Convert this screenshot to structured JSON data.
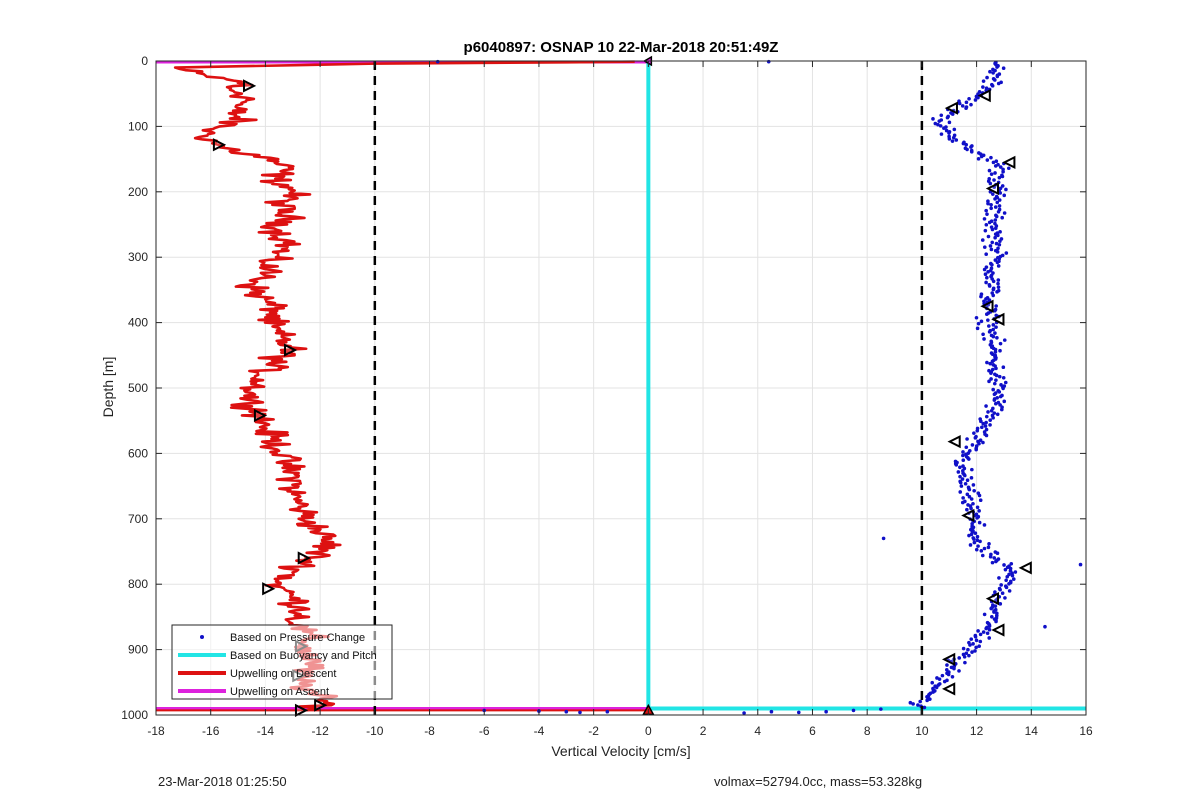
{
  "chart_data": {
    "type": "line",
    "title": "p6040897: OSNAP 10 22-Mar-2018 20:51:49Z",
    "xlabel": "Vertical Velocity [cm/s]",
    "ylabel": "Depth [m]",
    "xlim": [
      -18,
      16
    ],
    "ylim": [
      1000,
      0
    ],
    "y_reversed": true,
    "grid": true,
    "xticks": [
      -18,
      -16,
      -14,
      -12,
      -10,
      -8,
      -6,
      -4,
      -2,
      0,
      2,
      4,
      6,
      8,
      10,
      12,
      14,
      16
    ],
    "yticks": [
      0,
      100,
      200,
      300,
      400,
      500,
      600,
      700,
      800,
      900,
      1000
    ],
    "legend_position": "bottom-left",
    "legend": [
      {
        "label": "Based on Pressure Change",
        "color": "#1010c8",
        "style": "marker"
      },
      {
        "label": "Based on Buoyancy and Pitch",
        "color": "#22e5e5",
        "style": "line"
      },
      {
        "label": "Upwelling on Descent",
        "color": "#dd1111",
        "style": "line"
      },
      {
        "label": "Upwelling on Ascent",
        "color": "#dd22dd",
        "style": "line"
      }
    ],
    "vlines": [
      {
        "x": -10,
        "style": "dashed",
        "color": "#000000"
      },
      {
        "x": 10,
        "style": "dashed",
        "color": "#000000"
      }
    ],
    "series": [
      {
        "name": "Based on Pressure Change",
        "kind": "scatter",
        "color": "#1010c8",
        "ascent_profile": [
          {
            "y": 0,
            "x": 12.8
          },
          {
            "y": 40,
            "x": 12.6
          },
          {
            "y": 90,
            "x": 10.6
          },
          {
            "y": 130,
            "x": 11.5
          },
          {
            "y": 160,
            "x": 12.9
          },
          {
            "y": 220,
            "x": 12.6
          },
          {
            "y": 300,
            "x": 12.7
          },
          {
            "y": 380,
            "x": 12.4
          },
          {
            "y": 440,
            "x": 12.6
          },
          {
            "y": 520,
            "x": 12.8
          },
          {
            "y": 580,
            "x": 11.9
          },
          {
            "y": 620,
            "x": 11.4
          },
          {
            "y": 680,
            "x": 11.8
          },
          {
            "y": 740,
            "x": 12.0
          },
          {
            "y": 780,
            "x": 13.2
          },
          {
            "y": 830,
            "x": 12.8
          },
          {
            "y": 880,
            "x": 12.2
          },
          {
            "y": 920,
            "x": 11.2
          },
          {
            "y": 960,
            "x": 10.6
          },
          {
            "y": 985,
            "x": 9.8
          }
        ],
        "bottom_points": [
          {
            "x": -6,
            "y": 993
          },
          {
            "x": -4,
            "y": 994
          },
          {
            "x": -3,
            "y": 995
          },
          {
            "x": -2.5,
            "y": 996
          },
          {
            "x": -1.5,
            "y": 995
          },
          {
            "x": 3.5,
            "y": 997
          },
          {
            "x": 4.5,
            "y": 995
          },
          {
            "x": 5.5,
            "y": 996
          },
          {
            "x": 6.5,
            "y": 995
          },
          {
            "x": 7.5,
            "y": 993
          },
          {
            "x": 8.5,
            "y": 991
          }
        ],
        "outliers": [
          {
            "x": 4.4,
            "y": 1
          },
          {
            "x": -7.7,
            "y": 1
          },
          {
            "x": 8.6,
            "y": 730
          },
          {
            "x": 15.8,
            "y": 770
          },
          {
            "x": 14.5,
            "y": 865
          }
        ]
      },
      {
        "name": "Based on Buoyancy and Pitch",
        "kind": "line",
        "color": "#22e5e5",
        "points": [
          [
            0,
            0
          ],
          [
            0,
            990
          ],
          [
            16,
            990
          ]
        ]
      },
      {
        "name": "Upwelling on Descent",
        "kind": "line",
        "color": "#dd1111",
        "points": [
          [
            -0.5,
            1
          ],
          [
            -3,
            2
          ],
          [
            -10,
            4
          ],
          [
            -17.3,
            10
          ],
          [
            -16.5,
            20
          ],
          [
            -15.2,
            30
          ],
          [
            -14.6,
            35
          ],
          [
            -15.5,
            40
          ],
          [
            -14.8,
            50
          ],
          [
            -14.6,
            60
          ],
          [
            -15.2,
            70
          ],
          [
            -15.0,
            90
          ],
          [
            -15.6,
            100
          ],
          [
            -16.2,
            110
          ],
          [
            -16.0,
            120
          ],
          [
            -15.7,
            130
          ],
          [
            -14.9,
            140
          ],
          [
            -13.8,
            150
          ],
          [
            -13.3,
            165
          ],
          [
            -13.7,
            180
          ],
          [
            -12.9,
            200
          ],
          [
            -13.5,
            220
          ],
          [
            -13.2,
            240
          ],
          [
            -13.6,
            260
          ],
          [
            -13.1,
            280
          ],
          [
            -13.8,
            300
          ],
          [
            -14.0,
            330
          ],
          [
            -14.5,
            345
          ],
          [
            -14.2,
            360
          ],
          [
            -13.6,
            380
          ],
          [
            -13.9,
            400
          ],
          [
            -13.5,
            420
          ],
          [
            -13.1,
            440
          ],
          [
            -13.7,
            460
          ],
          [
            -14.1,
            480
          ],
          [
            -14.4,
            500
          ],
          [
            -14.6,
            520
          ],
          [
            -14.2,
            540
          ],
          [
            -14.0,
            560
          ],
          [
            -13.7,
            580
          ],
          [
            -13.4,
            600
          ],
          [
            -13.2,
            620
          ],
          [
            -12.9,
            640
          ],
          [
            -13.0,
            660
          ],
          [
            -12.7,
            680
          ],
          [
            -12.5,
            700
          ],
          [
            -12.0,
            720
          ],
          [
            -11.7,
            740
          ],
          [
            -12.3,
            760
          ],
          [
            -12.9,
            780
          ],
          [
            -13.6,
            800
          ],
          [
            -13.0,
            820
          ],
          [
            -12.6,
            840
          ],
          [
            -12.9,
            860
          ],
          [
            -12.4,
            880
          ],
          [
            -12.6,
            900
          ],
          [
            -12.2,
            920
          ],
          [
            -12.8,
            940
          ],
          [
            -12.5,
            960
          ],
          [
            -12.0,
            975
          ],
          [
            -11.8,
            985
          ],
          [
            -12.5,
            993
          ]
        ],
        "jitter": 0.9
      },
      {
        "name": "Upwelling on Ascent",
        "kind": "line",
        "color": "#dd22dd",
        "points": [
          [
            -18,
            0
          ],
          [
            0,
            0
          ],
          [
            -18,
            990
          ],
          [
            0,
            990
          ]
        ]
      }
    ],
    "markers": {
      "descent_triangles_left": [
        {
          "x": -14.6,
          "y": 38
        },
        {
          "x": -15.7,
          "y": 128
        },
        {
          "x": -13.1,
          "y": 442
        },
        {
          "x": -14.2,
          "y": 542
        },
        {
          "x": -12.6,
          "y": 760
        },
        {
          "x": -13.9,
          "y": 807
        },
        {
          "x": -12.7,
          "y": 895
        },
        {
          "x": -12.8,
          "y": 940
        },
        {
          "x": -12.0,
          "y": 985
        },
        {
          "x": -12.7,
          "y": 993
        }
      ],
      "ascent_triangles_right": [
        {
          "x": 12.3,
          "y": 53
        },
        {
          "x": 11.1,
          "y": 72
        },
        {
          "x": 13.2,
          "y": 155
        },
        {
          "x": 12.6,
          "y": 195
        },
        {
          "x": 12.4,
          "y": 375
        },
        {
          "x": 12.8,
          "y": 395
        },
        {
          "x": 11.2,
          "y": 582
        },
        {
          "x": 11.7,
          "y": 695
        },
        {
          "x": 13.8,
          "y": 775
        },
        {
          "x": 12.6,
          "y": 822
        },
        {
          "x": 12.8,
          "y": 870
        },
        {
          "x": 11.0,
          "y": 915
        },
        {
          "x": 11.0,
          "y": 960
        }
      ],
      "surface_triangle": {
        "x": 0,
        "y": 0
      },
      "bottom_triangle": {
        "x": 0,
        "y": 993
      }
    }
  },
  "footer": {
    "left": "23-Mar-2018 01:25:50",
    "right": "volmax=52794.0cc, mass=53.328kg"
  }
}
